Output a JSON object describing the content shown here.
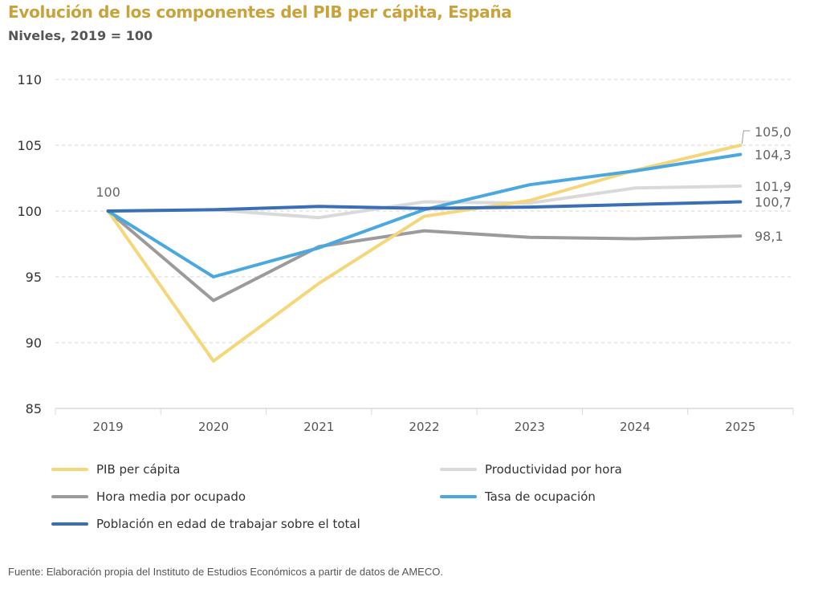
{
  "header": {
    "title": "Evolución de los componentes del PIB per cápita, España",
    "subtitle": "Niveles, 2019 = 100"
  },
  "source": "Fuente: Elaboración propia del Instituto de Estudios Económicos a partir de datos de AMECO.",
  "chart_data": {
    "type": "line",
    "title": "Evolución de los componentes del PIB per cápita, España",
    "subtitle": "Niveles, 2019 = 100",
    "xlabel": "",
    "ylabel": "",
    "categories": [
      "2019",
      "2020",
      "2021",
      "2022",
      "2023",
      "2024",
      "2025"
    ],
    "ylim": [
      85,
      110
    ],
    "yticks": [
      85,
      90,
      95,
      100,
      105,
      110
    ],
    "grid": true,
    "legend_position": "bottom",
    "series": [
      {
        "name": "Productividad por hora",
        "color": "#d9d9d9",
        "values": [
          100,
          100.1,
          99.5,
          100.7,
          100.6,
          101.75,
          101.9
        ],
        "end_label": "101,9"
      },
      {
        "name": "Hora media por ocupado",
        "color": "#9b9b9b",
        "values": [
          100,
          93.2,
          97.3,
          98.5,
          98.0,
          97.9,
          98.1
        ],
        "end_label": "98,1"
      },
      {
        "name": "PIB per cápita",
        "color": "#f5d77a",
        "values": [
          100,
          88.6,
          94.5,
          99.6,
          100.8,
          103.1,
          105.0
        ],
        "end_label": "105,0"
      },
      {
        "name": "Tasa de ocupación",
        "color": "#4aa8e0",
        "values": [
          100,
          95.0,
          97.2,
          100.1,
          102.0,
          103.05,
          104.3
        ],
        "end_label": "104,3"
      },
      {
        "name": "Población en edad de trabajar sobre el total",
        "color": "#3a6fb5",
        "values": [
          100,
          100.1,
          100.35,
          100.2,
          100.3,
          100.5,
          100.7
        ],
        "end_label": "100,7"
      }
    ],
    "annotations": [
      {
        "text": "100",
        "category": "2019",
        "value": 100
      }
    ]
  },
  "legend": [
    {
      "label": "PIB per cápita",
      "color": "#f5d77a"
    },
    {
      "label": "Productividad por hora",
      "color": "#d9d9d9"
    },
    {
      "label": "Hora media por ocupado",
      "color": "#9b9b9b"
    },
    {
      "label": "Tasa de ocupación",
      "color": "#4aa8e0"
    },
    {
      "label": "Población en edad de trabajar sobre el total",
      "color": "#3a6fb5"
    }
  ]
}
